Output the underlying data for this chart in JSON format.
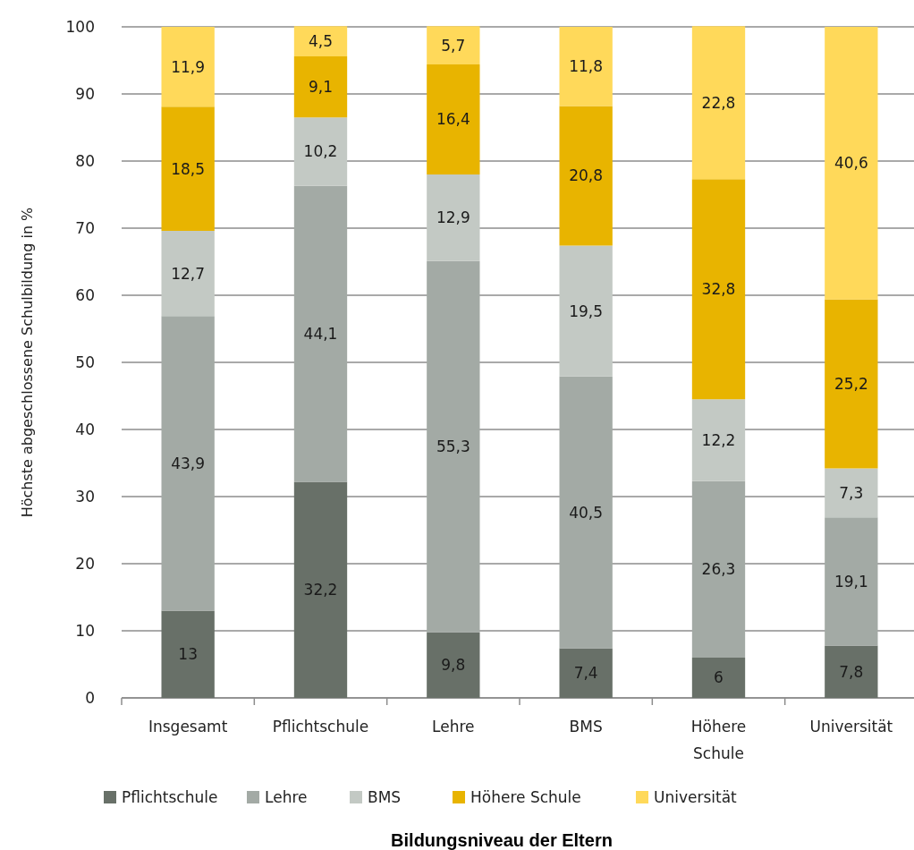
{
  "chart_data": {
    "type": "bar",
    "stacked": true,
    "xlabel": "Bildungsniveau der Eltern",
    "ylabel": "Höchste abgeschlossene Schulbildung in %",
    "categories": [
      "Insgesamt",
      "Pflichtschule",
      "Lehre",
      "BMS",
      "Höhere Schule",
      "Universität"
    ],
    "ylim": [
      0,
      100
    ],
    "yticks": [
      0,
      10,
      20,
      30,
      40,
      50,
      60,
      70,
      80,
      90,
      100
    ],
    "grid": "y",
    "legend": "bottom",
    "series": [
      {
        "name": "Pflichtschule",
        "color": "#687068",
        "values": [
          13,
          32.2,
          9.8,
          7.4,
          6,
          7.8
        ],
        "value_labels": [
          "13",
          "32,2",
          "9,8",
          "7,4",
          "6",
          "7,8"
        ]
      },
      {
        "name": "Lehre",
        "color": "#a3aaa5",
        "values": [
          43.9,
          44.1,
          55.3,
          40.5,
          26.3,
          19.1
        ],
        "value_labels": [
          "43,9",
          "44,1",
          "55,3",
          "40,5",
          "26,3",
          "19,1"
        ]
      },
      {
        "name": "BMS",
        "color": "#c3c9c4",
        "values": [
          12.7,
          10.2,
          12.9,
          19.5,
          12.2,
          7.3
        ],
        "value_labels": [
          "12,7",
          "10,2",
          "12,9",
          "19,5",
          "12,2",
          "7,3"
        ]
      },
      {
        "name": "Höhere Schule",
        "color": "#e8b400",
        "values": [
          18.5,
          9.1,
          16.4,
          20.8,
          32.8,
          25.2
        ],
        "value_labels": [
          "18,5",
          "9,1",
          "16,4",
          "20,8",
          "32,8",
          "25,2"
        ]
      },
      {
        "name": "Universität",
        "color": "#ffd95a",
        "values": [
          11.9,
          4.5,
          5.7,
          11.8,
          22.8,
          40.6
        ],
        "value_labels": [
          "11,9",
          "4,5",
          "5,7",
          "11,8",
          "22,8",
          "40,6"
        ]
      }
    ]
  }
}
